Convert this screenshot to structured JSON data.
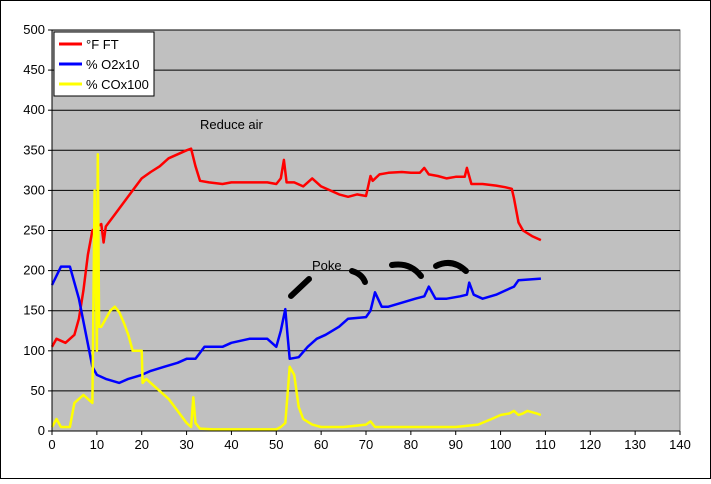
{
  "chart_data": {
    "type": "line",
    "annotations": [
      "Reduce air",
      "Poke"
    ],
    "xlim": [
      0,
      140
    ],
    "xticks": [
      0,
      10,
      20,
      30,
      40,
      50,
      60,
      70,
      80,
      90,
      100,
      110,
      120,
      130,
      140
    ],
    "ylim": [
      0,
      500
    ],
    "yticks": [
      0,
      50,
      100,
      150,
      200,
      250,
      300,
      350,
      400,
      450,
      500
    ],
    "grid": true,
    "legend": "top-left",
    "series": [
      {
        "name": "°F FT",
        "color": "#ff0000",
        "x": [
          0,
          1,
          3,
          5,
          6,
          7,
          8,
          9,
          10,
          11,
          11.5,
          12,
          14,
          16,
          18,
          20,
          22,
          24,
          26,
          28,
          30,
          31,
          32,
          33,
          35,
          38,
          40,
          42,
          45,
          48,
          50,
          51,
          51.7,
          52.3,
          54,
          56,
          58,
          60,
          62,
          64,
          66,
          68,
          70,
          71,
          71.5,
          73,
          75,
          78,
          80,
          82,
          83,
          84,
          86,
          88,
          90,
          92,
          92.5,
          93.5,
          96,
          99,
          101,
          102.5,
          103,
          104,
          105,
          107,
          109
        ],
        "values": [
          105,
          115,
          110,
          120,
          140,
          175,
          220,
          250,
          255,
          258,
          235,
          255,
          270,
          285,
          300,
          315,
          323,
          330,
          340,
          345,
          350,
          352,
          330,
          312,
          310,
          308,
          310,
          310,
          310,
          310,
          308,
          315,
          338,
          310,
          310,
          305,
          315,
          305,
          300,
          295,
          292,
          295,
          293,
          318,
          312,
          320,
          322,
          323,
          322,
          322,
          328,
          320,
          318,
          315,
          317,
          317,
          328,
          308,
          308,
          306,
          304,
          302,
          290,
          260,
          250,
          243,
          238
        ]
      },
      {
        "name": "% O2x10",
        "color": "#0000ff",
        "x": [
          0,
          2,
          4,
          6,
          9,
          10,
          12,
          15,
          17,
          20,
          22,
          25,
          28,
          30,
          32,
          34,
          38,
          40,
          44,
          48,
          49,
          50,
          51,
          52,
          52.5,
          53,
          55,
          57,
          59,
          61,
          64,
          66,
          70,
          71,
          72,
          73.5,
          75,
          78,
          81,
          83,
          84,
          85.5,
          88,
          91,
          92.5,
          93,
          94,
          96,
          99,
          101,
          103,
          104,
          109
        ],
        "values": [
          182,
          205,
          205,
          165,
          80,
          70,
          65,
          60,
          65,
          70,
          75,
          80,
          85,
          90,
          90,
          105,
          105,
          110,
          115,
          115,
          110,
          105,
          125,
          152,
          120,
          90,
          92,
          105,
          115,
          120,
          130,
          140,
          142,
          150,
          173,
          155,
          155,
          160,
          165,
          168,
          180,
          165,
          165,
          168,
          170,
          185,
          170,
          165,
          170,
          175,
          180,
          188,
          190
        ]
      },
      {
        "name": "% COx100",
        "color": "#ffff00",
        "x": [
          0,
          1,
          2,
          4,
          5,
          6,
          7,
          8,
          9,
          9.5,
          10,
          10.2,
          10.5,
          11,
          12,
          13,
          14,
          15,
          16,
          17,
          18,
          20,
          20.2,
          21,
          22,
          24,
          26,
          28,
          30,
          31,
          31.5,
          32,
          33,
          36,
          40,
          45,
          50,
          51,
          52,
          53,
          54,
          55,
          56,
          58,
          60,
          65,
          70,
          71,
          72,
          75,
          80,
          85,
          90,
          95,
          98,
          100,
          102,
          103,
          104,
          105,
          106,
          108,
          109
        ],
        "values": [
          5,
          15,
          5,
          5,
          35,
          40,
          45,
          40,
          35,
          300,
          100,
          345,
          130,
          130,
          140,
          150,
          155,
          148,
          135,
          120,
          100,
          100,
          60,
          65,
          60,
          50,
          40,
          25,
          10,
          5,
          42,
          10,
          3,
          2,
          2,
          2,
          2,
          5,
          10,
          80,
          70,
          30,
          15,
          8,
          5,
          5,
          8,
          12,
          5,
          5,
          5,
          5,
          5,
          8,
          15,
          20,
          22,
          25,
          20,
          22,
          25,
          22,
          20
        ]
      }
    ]
  }
}
